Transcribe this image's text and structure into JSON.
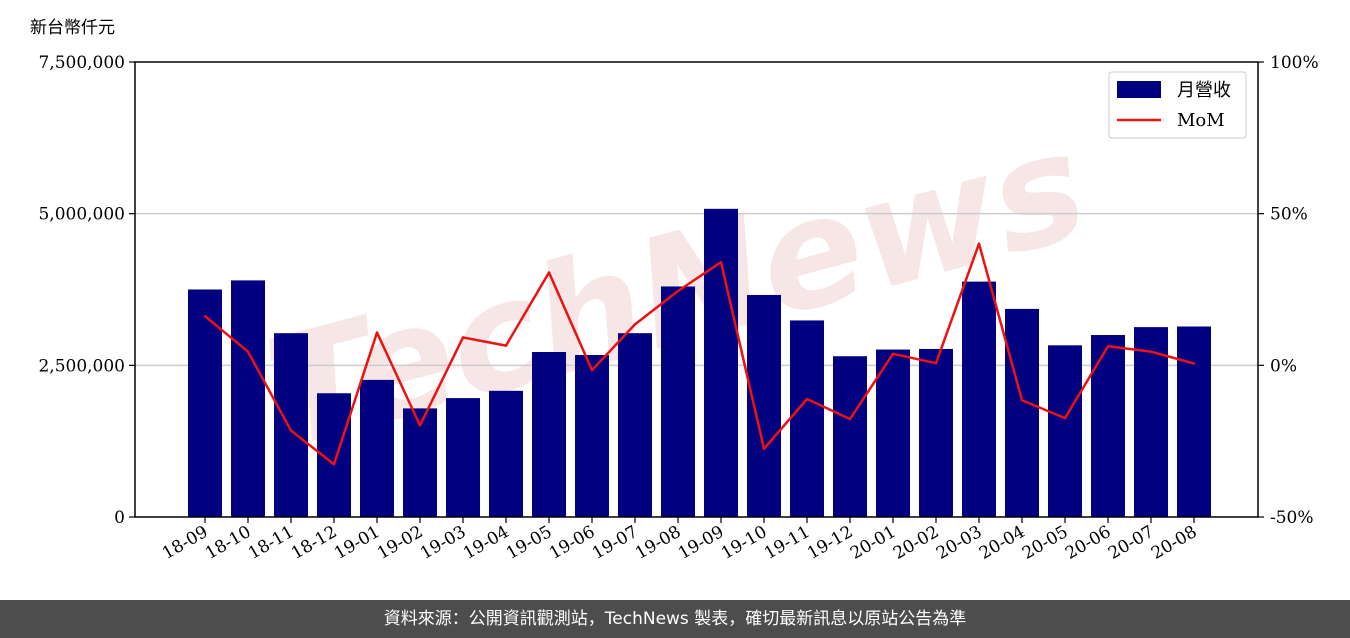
{
  "watermark": "TechNews",
  "footer": "資料來源：公開資訊觀測站，TechNews 製表，確切最新訊息以原站公告為準",
  "chart_data": {
    "type": "bar",
    "unit_label": "新台幣仟元",
    "categories": [
      "18-09",
      "18-10",
      "18-11",
      "18-12",
      "19-01",
      "19-02",
      "19-03",
      "19-04",
      "19-05",
      "19-06",
      "19-07",
      "19-08",
      "19-09",
      "19-10",
      "19-11",
      "19-12",
      "20-01",
      "20-02",
      "20-03",
      "20-04",
      "20-05",
      "20-06",
      "20-07",
      "20-08"
    ],
    "series": [
      {
        "name": "月營收",
        "type": "bar",
        "axis": "left",
        "color": "#000080",
        "values": [
          3750000,
          3900000,
          3030000,
          2040000,
          2260000,
          1790000,
          1960000,
          2080000,
          2720000,
          2670000,
          3030000,
          3800000,
          5080000,
          3660000,
          3240000,
          2650000,
          2760000,
          2770000,
          3880000,
          3430000,
          2830000,
          3000000,
          3130000,
          3140000
        ]
      },
      {
        "name": "MoM",
        "type": "line",
        "axis": "right",
        "color": "#ee1111",
        "values": [
          16.2,
          4.5,
          -21.5,
          -32.6,
          10.8,
          -19.8,
          9.2,
          6.5,
          30.6,
          -1.6,
          13.5,
          24.5,
          34.0,
          -27.5,
          -11.1,
          -17.7,
          3.8,
          0.7,
          40.1,
          -11.5,
          -17.4,
          6.3,
          4.5,
          0.6
        ]
      }
    ],
    "y_left": {
      "ylim": [
        0,
        7500000
      ],
      "ticks": [
        0,
        2500000,
        5000000,
        7500000
      ],
      "tick_labels": [
        "0",
        "2,500,000",
        "5,000,000",
        "7,500,000"
      ]
    },
    "y_right": {
      "ylim": [
        -50,
        100
      ],
      "ticks": [
        -50,
        0,
        50,
        100
      ],
      "tick_labels": [
        "-50%",
        "0%",
        "50%",
        "100%"
      ]
    },
    "grid": "horizontal",
    "legend": "top-right"
  }
}
